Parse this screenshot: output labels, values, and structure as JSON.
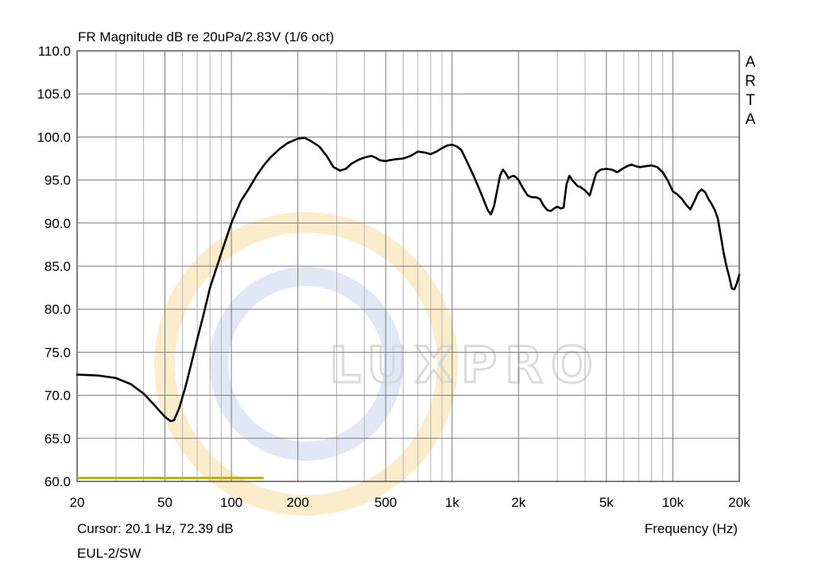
{
  "colors": {
    "background": "#ffffff",
    "grid_major": "#7a7a7a",
    "grid_minor": "#b4b4b4",
    "curve": "#000000",
    "cursor_line": "#b8b000",
    "watermark_yellow": "#f7dca0",
    "watermark_blue": "#c8d4ec",
    "watermark_text": "#d8d8d8"
  },
  "watermark": {
    "text": "LUXPRO"
  },
  "brand": {
    "letters": [
      "A",
      "R",
      "T",
      "A"
    ]
  },
  "footer": {
    "cursor": "Cursor: 20.1 Hz, 72.39 dB",
    "xlabel": "Frequency (Hz)",
    "model": "EUL-2/SW"
  },
  "chart_data": {
    "type": "line",
    "title": "FR Magnitude dB re 20uPa/2.83V (1/6 oct)",
    "xlabel": "Frequency (Hz)",
    "ylabel": "",
    "x_scale": "log",
    "xlim": [
      20,
      20000
    ],
    "ylim": [
      60,
      110
    ],
    "grid": true,
    "x_ticks": [
      {
        "value": 20,
        "label": "20"
      },
      {
        "value": 50,
        "label": "50"
      },
      {
        "value": 100,
        "label": "100"
      },
      {
        "value": 200,
        "label": "200"
      },
      {
        "value": 500,
        "label": "500"
      },
      {
        "value": 1000,
        "label": "1k"
      },
      {
        "value": 2000,
        "label": "2k"
      },
      {
        "value": 5000,
        "label": "5k"
      },
      {
        "value": 10000,
        "label": "10k"
      },
      {
        "value": 20000,
        "label": "20k"
      }
    ],
    "y_ticks": [
      {
        "value": 110,
        "label": "110.0"
      },
      {
        "value": 105,
        "label": "105.0"
      },
      {
        "value": 100,
        "label": "100.0"
      },
      {
        "value": 95,
        "label": "95.0"
      },
      {
        "value": 90,
        "label": "90.0"
      },
      {
        "value": 85,
        "label": "85.0"
      },
      {
        "value": 80,
        "label": "80.0"
      },
      {
        "value": 75,
        "label": "75.0"
      },
      {
        "value": 70,
        "label": "70.0"
      },
      {
        "value": 65,
        "label": "65.0"
      },
      {
        "value": 60,
        "label": "60.0"
      }
    ],
    "series": [
      {
        "x": [
          20,
          25,
          30,
          35,
          40,
          45,
          50,
          53,
          55,
          58,
          62,
          66,
          70,
          75,
          80,
          90,
          100,
          110,
          120,
          130,
          140,
          150,
          165,
          180,
          200,
          215,
          230,
          250,
          270,
          290,
          310,
          330,
          350,
          380,
          400,
          430,
          450,
          470,
          500,
          520,
          550,
          600,
          650,
          700,
          750,
          800,
          850,
          900,
          950,
          1000,
          1050,
          1100,
          1150,
          1200,
          1250,
          1300,
          1350,
          1400,
          1450,
          1500,
          1550,
          1600,
          1650,
          1700,
          1750,
          1800,
          1850,
          1900,
          1950,
          2000,
          2100,
          2200,
          2300,
          2400,
          2500,
          2600,
          2700,
          2800,
          2900,
          3000,
          3100,
          3200,
          3300,
          3400,
          3500,
          3700,
          3800,
          4000,
          4200,
          4400,
          4500,
          4700,
          5000,
          5300,
          5600,
          5900,
          6200,
          6500,
          6800,
          7100,
          7500,
          8000,
          8500,
          9000,
          9500,
          10000,
          10500,
          11000,
          11500,
          12000,
          12500,
          13000,
          13500,
          14000,
          14500,
          15000,
          15500,
          16000,
          16500,
          17000,
          17500,
          18000,
          18500,
          19000,
          19500,
          20000
        ],
        "y": [
          72.4,
          72.3,
          72.0,
          71.3,
          70.2,
          68.8,
          67.5,
          67.0,
          67.1,
          68.5,
          71.0,
          73.8,
          76.5,
          79.5,
          82.5,
          86.5,
          90.0,
          92.5,
          94.0,
          95.5,
          96.7,
          97.6,
          98.6,
          99.3,
          99.8,
          99.9,
          99.5,
          98.9,
          97.8,
          96.5,
          96.1,
          96.3,
          96.9,
          97.4,
          97.6,
          97.8,
          97.6,
          97.3,
          97.2,
          97.3,
          97.4,
          97.5,
          97.8,
          98.3,
          98.2,
          98.0,
          98.3,
          98.7,
          99.0,
          99.1,
          98.9,
          98.5,
          97.5,
          96.5,
          95.5,
          94.5,
          93.5,
          92.5,
          91.5,
          91.0,
          92.0,
          93.8,
          95.5,
          96.2,
          95.8,
          95.2,
          95.4,
          95.5,
          95.3,
          95.0,
          94.0,
          93.2,
          93.0,
          93.0,
          92.8,
          92.0,
          91.5,
          91.4,
          91.7,
          91.9,
          91.7,
          91.8,
          94.5,
          95.5,
          95.0,
          94.3,
          94.2,
          93.8,
          93.2,
          95.0,
          95.8,
          96.2,
          96.3,
          96.2,
          95.9,
          96.3,
          96.6,
          96.8,
          96.6,
          96.5,
          96.6,
          96.7,
          96.5,
          95.9,
          94.9,
          93.7,
          93.3,
          92.8,
          92.1,
          91.6,
          92.5,
          93.5,
          93.9,
          93.6,
          92.8,
          92.2,
          91.5,
          90.5,
          88.5,
          86.5,
          85.0,
          83.8,
          82.4,
          82.3,
          83.0,
          84.0
        ]
      }
    ],
    "cursor_series": {
      "x": [
        20,
        140
      ],
      "y": [
        60.4,
        60.4
      ]
    },
    "annotations": [
      "Cursor: 20.1 Hz, 72.39 dB",
      "EUL-2/SW"
    ]
  }
}
